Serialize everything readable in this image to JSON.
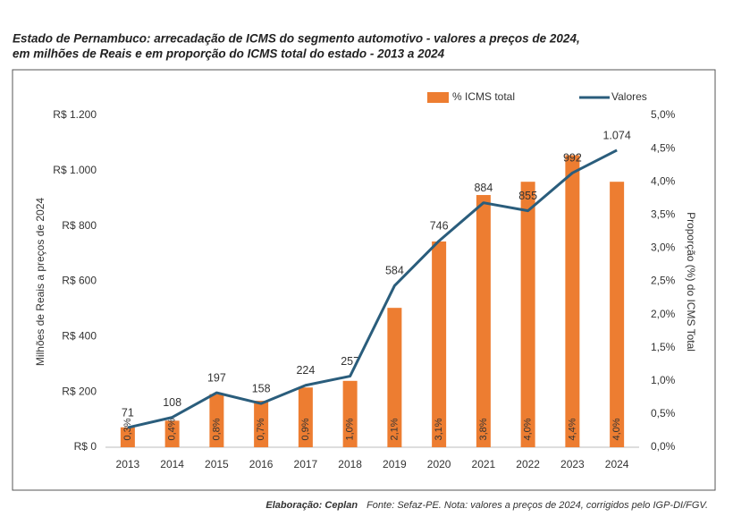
{
  "chart_data": {
    "type": "bar",
    "title": "Estado de Pernambuco: arrecadação de ICMS do segmento automotivo - valores a preços de 2024,",
    "subtitle": "em milhões de Reais e em proporção do ICMS total do estado - 2013 a 2024",
    "y_label": "Milhões de Reais a preços de 2024",
    "y2_label": "Proporção (%) do ICMS Total",
    "categories": [
      "2013",
      "2014",
      "2015",
      "2016",
      "2017",
      "2018",
      "2019",
      "2020",
      "2021",
      "2022",
      "2023",
      "2024"
    ],
    "series": [
      {
        "name": "% ICMS total",
        "type": "bar",
        "axis": "y2",
        "color": "#ed7d31",
        "values": [
          0.3,
          0.4,
          0.8,
          0.7,
          0.9,
          1.0,
          2.1,
          3.1,
          3.8,
          4.0,
          4.4,
          4.0
        ],
        "value_labels": [
          "0,3%",
          "0,4%",
          "0,8%",
          "0,7%",
          "0,9%",
          "1,0%",
          "2,1%",
          "3,1%",
          "3,8%",
          "4,0%",
          "4,4%",
          "4,0%"
        ]
      },
      {
        "name": "Valores",
        "type": "line",
        "color": "#2a5d7c",
        "values": [
          71,
          108,
          197,
          158,
          224,
          257,
          584,
          746,
          884,
          855,
          992,
          1074
        ],
        "value_labels": [
          "71",
          "108",
          "197",
          "158",
          "224",
          "257",
          "584",
          "746",
          "884",
          "855",
          "992",
          "1.074"
        ]
      }
    ],
    "ylim": [
      0,
      1200
    ],
    "yticks": [
      {
        "value": 0,
        "label": "R$ 0"
      },
      {
        "value": 200,
        "label": "R$ 200"
      },
      {
        "value": 400,
        "label": "R$ 400"
      },
      {
        "value": 600,
        "label": "R$ 600"
      },
      {
        "value": 800,
        "label": "R$ 800"
      },
      {
        "value": 1000,
        "label": "R$ 1.000"
      },
      {
        "value": 1200,
        "label": "R$ 1.200"
      }
    ],
    "y2lim": [
      0,
      5
    ],
    "y2ticks": [
      {
        "value": 0,
        "label": "0,0%"
      },
      {
        "value": 0.5,
        "label": "0,5%"
      },
      {
        "value": 1,
        "label": "1,0%"
      },
      {
        "value": 1.5,
        "label": "1,5%"
      },
      {
        "value": 2,
        "label": "2,0%"
      },
      {
        "value": 2.5,
        "label": "2,5%"
      },
      {
        "value": 3,
        "label": "3,0%"
      },
      {
        "value": 3.5,
        "label": "3,5%"
      },
      {
        "value": 4,
        "label": "4,0%"
      },
      {
        "value": 4.5,
        "label": "4,5%"
      },
      {
        "value": 5,
        "label": "5,0%"
      }
    ],
    "grid": false,
    "legend": "top",
    "credit": "Elaboração: Ceplan",
    "source": "Fonte: Sefaz-PE. Nota: valores a preços de 2024, corrigidos pelo IGP-DI/FGV."
  }
}
